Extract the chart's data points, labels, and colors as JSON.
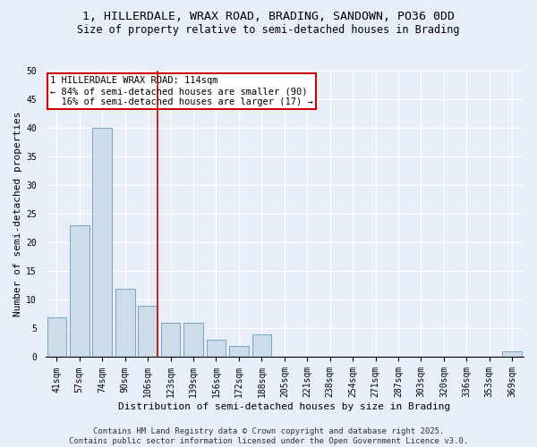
{
  "title_line1": "1, HILLERDALE, WRAX ROAD, BRADING, SANDOWN, PO36 0DD",
  "title_line2": "Size of property relative to semi-detached houses in Brading",
  "xlabel": "Distribution of semi-detached houses by size in Brading",
  "ylabel": "Number of semi-detached properties",
  "categories": [
    "41sqm",
    "57sqm",
    "74sqm",
    "90sqm",
    "106sqm",
    "123sqm",
    "139sqm",
    "156sqm",
    "172sqm",
    "188sqm",
    "205sqm",
    "221sqm",
    "238sqm",
    "254sqm",
    "271sqm",
    "287sqm",
    "303sqm",
    "320sqm",
    "336sqm",
    "353sqm",
    "369sqm"
  ],
  "values": [
    7,
    23,
    40,
    12,
    9,
    6,
    6,
    3,
    2,
    4,
    0,
    0,
    0,
    0,
    0,
    0,
    0,
    0,
    0,
    0,
    1
  ],
  "bar_color": "#ccdce9",
  "bar_edge_color": "#6699bb",
  "smaller_pct": 84,
  "smaller_count": 90,
  "larger_pct": 16,
  "larger_count": 17,
  "annotation_box_bg": "#ffffff",
  "annotation_box_edge": "#cc0000",
  "vline_color": "#cc0000",
  "ylim": [
    0,
    50
  ],
  "yticks": [
    0,
    5,
    10,
    15,
    20,
    25,
    30,
    35,
    40,
    45,
    50
  ],
  "background_color": "#e8eef8",
  "plot_bg_color": "#e8eef8",
  "grid_color": "#ffffff",
  "footer": "Contains HM Land Registry data © Crown copyright and database right 2025.\nContains public sector information licensed under the Open Government Licence v3.0.",
  "title_fontsize": 9.5,
  "subtitle_fontsize": 8.5,
  "axis_label_fontsize": 8,
  "tick_fontsize": 7,
  "annotation_fontsize": 7.5,
  "footer_fontsize": 6.5
}
